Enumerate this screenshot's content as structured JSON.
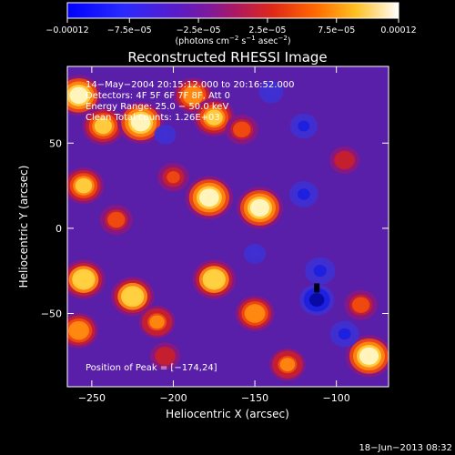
{
  "chart_data": {
    "type": "heatmap",
    "title": "Reconstructed RHESSI Image",
    "xlabel": "Heliocentric X (arcsec)",
    "ylabel": "Heliocentric Y (arcsec)",
    "xlim": [
      -265,
      -68
    ],
    "ylim": [
      -93,
      95
    ],
    "xticks": [
      -250,
      -200,
      -150,
      -100
    ],
    "yticks": [
      -50,
      0,
      50
    ],
    "xtick_labels": [
      "−250",
      "−200",
      "−150",
      "−100"
    ],
    "ytick_labels": [
      "−50",
      "0",
      "50"
    ],
    "colorbar": {
      "min": -0.00012,
      "max": 0.00012,
      "ticks": [
        -0.00012,
        -7.5e-05,
        -2.5e-05,
        2.5e-05,
        7.5e-05,
        0.00012
      ],
      "tick_labels": [
        "−0.00012",
        "−7.5e−05",
        "−2.5e−05",
        "2.5e−05",
        "7.5e−05",
        "0.00012"
      ],
      "unit_text": "(photons cm",
      "unit_sup1": "−2",
      "unit_mid": " s",
      "unit_sup2": "−1",
      "unit_tail": " asec",
      "unit_sup3": "−2",
      "unit_close": ")"
    },
    "annotations": {
      "time_range": "14−May−2004 20:15:12.000 to 20:16:52.000",
      "detectors": "Detectors: 4F 5F 6F 7F 8F, Att 0",
      "energy": "Energy Range: 25.0 − 50.0 keV",
      "clean": "Clean     Total counts: 1.26E+03",
      "peak": "Position of Peak = [−174,24]"
    },
    "peak_position": [
      -174,
      24
    ],
    "blobs": [
      {
        "x": -258,
        "y": 78,
        "v": 0.9
      },
      {
        "x": -243,
        "y": 60,
        "v": 0.8
      },
      {
        "x": -220,
        "y": 62,
        "v": 0.95
      },
      {
        "x": -188,
        "y": 78,
        "v": 0.7
      },
      {
        "x": -175,
        "y": 65,
        "v": 0.8
      },
      {
        "x": -178,
        "y": 18,
        "v": 1.0
      },
      {
        "x": -147,
        "y": 12,
        "v": 0.95
      },
      {
        "x": -158,
        "y": 58,
        "v": 0.5
      },
      {
        "x": -255,
        "y": 25,
        "v": 0.75
      },
      {
        "x": -235,
        "y": 5,
        "v": 0.5
      },
      {
        "x": -255,
        "y": -30,
        "v": 0.85
      },
      {
        "x": -258,
        "y": -60,
        "v": 0.7
      },
      {
        "x": -225,
        "y": -40,
        "v": 0.85
      },
      {
        "x": -210,
        "y": -55,
        "v": 0.6
      },
      {
        "x": -175,
        "y": -30,
        "v": 0.85
      },
      {
        "x": -150,
        "y": -50,
        "v": 0.7
      },
      {
        "x": -205,
        "y": -75,
        "v": 0.4
      },
      {
        "x": -130,
        "y": -80,
        "v": 0.6
      },
      {
        "x": -80,
        "y": -75,
        "v": 0.95
      },
      {
        "x": -85,
        "y": -45,
        "v": 0.5
      },
      {
        "x": -95,
        "y": 40,
        "v": 0.4
      },
      {
        "x": -200,
        "y": 30,
        "v": 0.45
      },
      {
        "x": -120,
        "y": 60,
        "v": -0.35
      },
      {
        "x": -120,
        "y": 20,
        "v": -0.4
      },
      {
        "x": -110,
        "y": -25,
        "v": -0.45
      },
      {
        "x": -112,
        "y": -42,
        "v": -0.6
      },
      {
        "x": -95,
        "y": -62,
        "v": -0.4
      },
      {
        "x": -140,
        "y": 80,
        "v": -0.25
      },
      {
        "x": -205,
        "y": 55,
        "v": -0.15
      },
      {
        "x": -150,
        "y": -15,
        "v": -0.15
      }
    ]
  },
  "footer": {
    "timestamp": "18−Jun−2013 08:32"
  }
}
